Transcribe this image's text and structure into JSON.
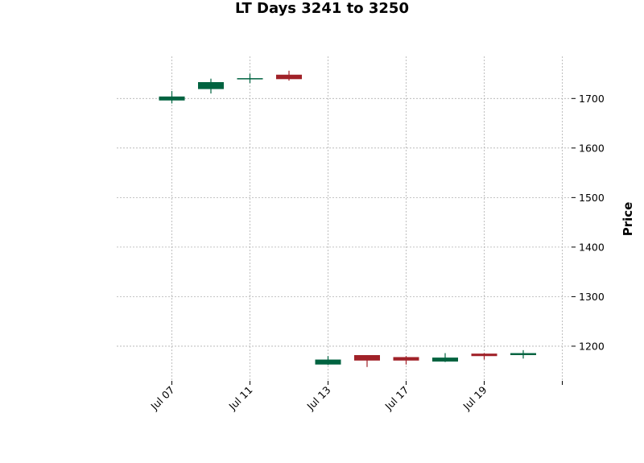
{
  "chart_data": {
    "type": "candlestick",
    "title": "LT Days 3241 to 3250",
    "xlabel": "",
    "ylabel": "Price",
    "ylim": [
      1130,
      1785
    ],
    "yticks": [
      1200,
      1300,
      1400,
      1500,
      1600,
      1700
    ],
    "xtick_labels": [
      "Jul 07",
      "Jul 11",
      "Jul 13",
      "Jul 17",
      "Jul 19",
      ""
    ],
    "grid": true,
    "colors": {
      "up": "#006340",
      "down": "#a02128",
      "grid": "#b0b0b0"
    },
    "candles": [
      {
        "open": 1696,
        "high": 1715,
        "low": 1690,
        "close": 1704
      },
      {
        "open": 1719,
        "high": 1740,
        "low": 1710,
        "close": 1733
      },
      {
        "open": 1739,
        "high": 1750,
        "low": 1731,
        "close": 1741
      },
      {
        "open": 1748,
        "high": 1756,
        "low": 1736,
        "close": 1739
      },
      {
        "open": 1163,
        "high": 1180,
        "low": 1162,
        "close": 1173
      },
      {
        "open": 1182,
        "high": 1182,
        "low": 1158,
        "close": 1171
      },
      {
        "open": 1178,
        "high": 1180,
        "low": 1163,
        "close": 1171
      },
      {
        "open": 1169,
        "high": 1186,
        "low": 1168,
        "close": 1177
      },
      {
        "open": 1185,
        "high": 1186,
        "low": 1173,
        "close": 1180
      },
      {
        "open": 1182,
        "high": 1192,
        "low": 1175,
        "close": 1186
      }
    ]
  }
}
